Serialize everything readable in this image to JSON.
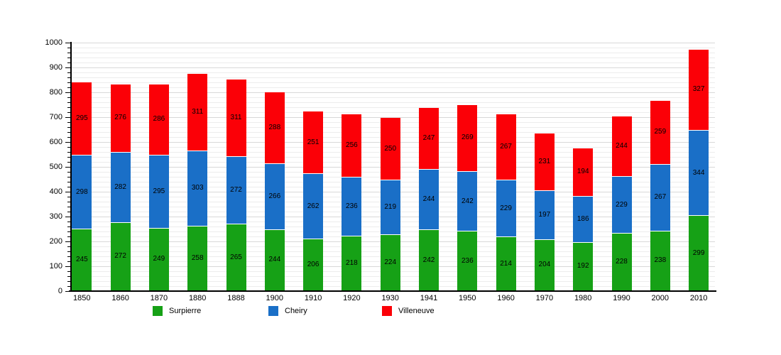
{
  "chart_data": {
    "type": "bar",
    "stacked": true,
    "title": "",
    "xlabel": "",
    "ylabel": "",
    "grid": "on",
    "legend_position": "bottom",
    "ylim": [
      0,
      1000
    ],
    "y_major_step": 100,
    "y_minor_step": 20,
    "y_tick_labels": [
      "0",
      "100",
      "200",
      "300",
      "400",
      "500",
      "600",
      "700",
      "800",
      "900",
      "1000"
    ],
    "categories": [
      "1850",
      "1860",
      "1870",
      "1880",
      "1888",
      "1900",
      "1910",
      "1920",
      "1930",
      "1941",
      "1950",
      "1960",
      "1970",
      "1980",
      "1990",
      "2000",
      "2010"
    ],
    "series": [
      {
        "name": "Surpierre",
        "color": "#16a116",
        "values": [
          245,
          272,
          249,
          258,
          265,
          244,
          206,
          218,
          224,
          242,
          236,
          214,
          204,
          192,
          228,
          238,
          299
        ]
      },
      {
        "name": "Cheiry",
        "color": "#1a6fc7",
        "values": [
          298,
          282,
          295,
          303,
          272,
          266,
          262,
          236,
          219,
          244,
          242,
          229,
          197,
          186,
          229,
          267,
          344
        ]
      },
      {
        "name": "Villeneuve",
        "color": "#fb0007",
        "values": [
          295,
          276,
          286,
          311,
          311,
          288,
          251,
          256,
          250,
          247,
          269,
          267,
          231,
          194,
          244,
          259,
          327
        ]
      }
    ],
    "totals": [
      838,
      830,
      830,
      872,
      848,
      798,
      719,
      710,
      693,
      733,
      747,
      710,
      632,
      572,
      701,
      764,
      970
    ]
  },
  "colors": {
    "background": "#ffffff",
    "axis": "#000000",
    "gridline_minor": "#ececec",
    "gridline_major": "#d8d8d8",
    "value_label": "#000000"
  }
}
